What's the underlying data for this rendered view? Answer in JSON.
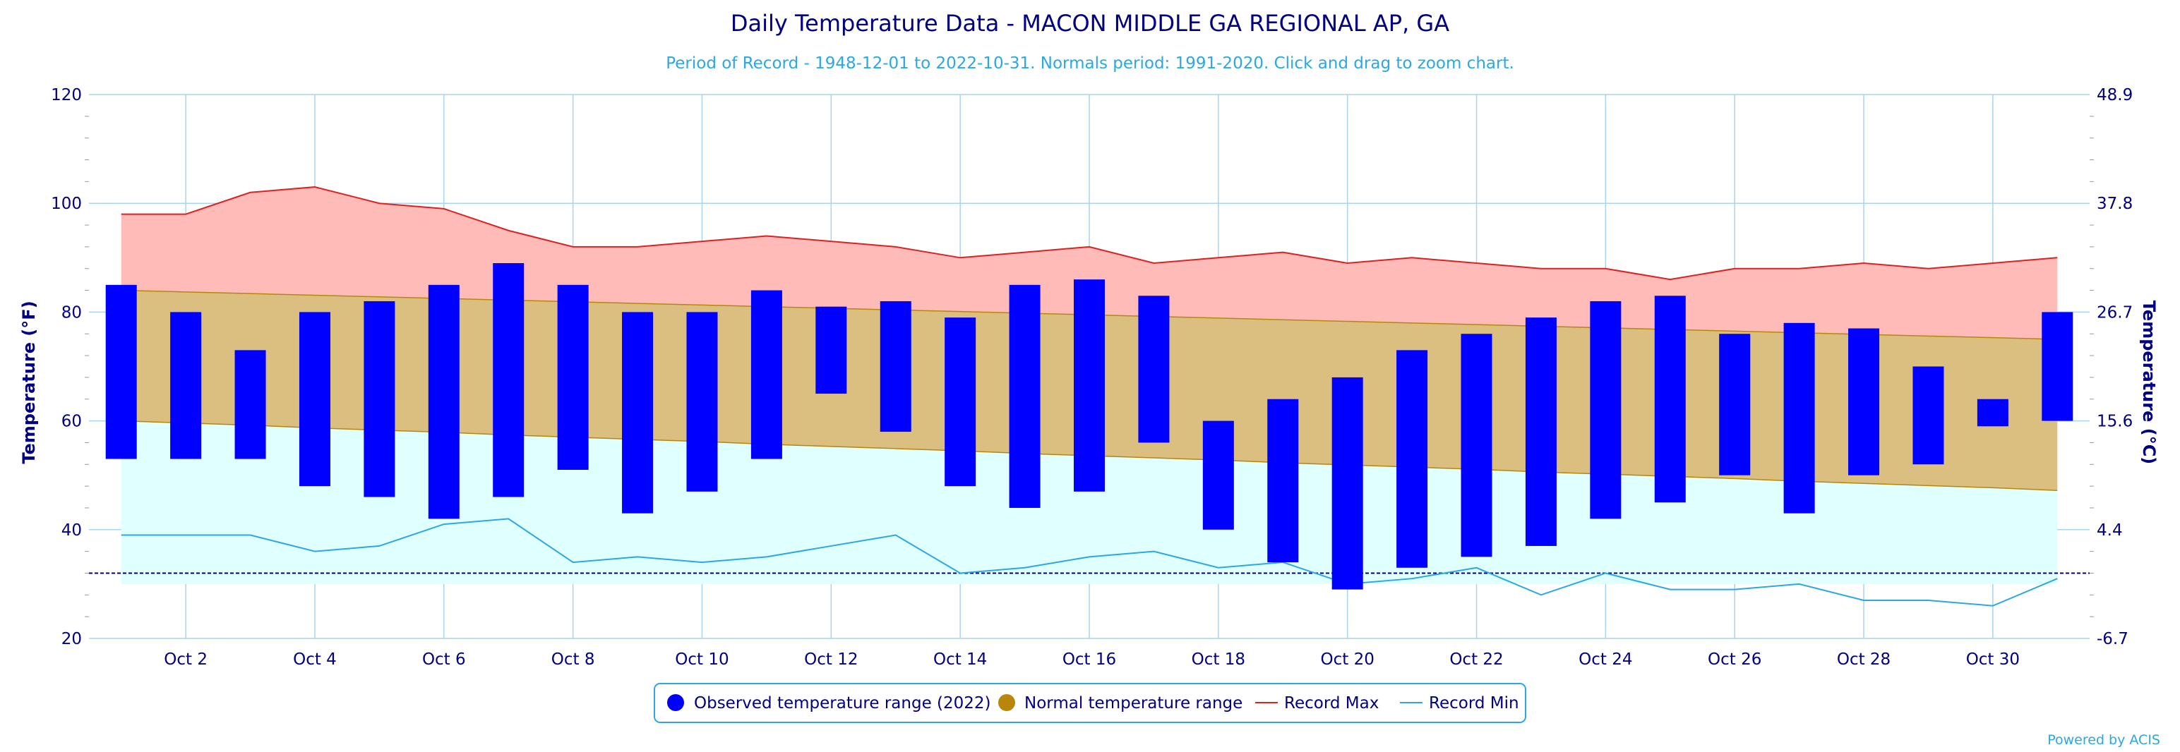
{
  "chart_data": {
    "type": "bar",
    "title": "Daily Temperature Data - MACON MIDDLE GA REGIONAL AP, GA",
    "subtitle": "Period of Record - 1948-12-01 to 2022-10-31. Normals period: 1991-2020. Click and drag to zoom chart.",
    "ylabel": "Temperature (°F)",
    "ylabel_right": "Temperature (°C)",
    "ylim": [
      20,
      120
    ],
    "yticks": [
      "20",
      "40",
      "60",
      "80",
      "100",
      "120"
    ],
    "yticks_right": [
      "-6.7",
      "4.4",
      "15.6",
      "26.7",
      "37.8",
      "48.9"
    ],
    "xticks": [
      "Oct 2",
      "Oct 4",
      "Oct 6",
      "Oct 8",
      "Oct 10",
      "Oct 12",
      "Oct 14",
      "Oct 16",
      "Oct 18",
      "Oct 20",
      "Oct 22",
      "Oct 24",
      "Oct 26",
      "Oct 28",
      "Oct 30"
    ],
    "xtick_days": [
      2,
      4,
      6,
      8,
      10,
      12,
      14,
      16,
      18,
      20,
      22,
      24,
      26,
      28,
      30
    ],
    "days": [
      1,
      2,
      3,
      4,
      5,
      6,
      7,
      8,
      9,
      10,
      11,
      12,
      13,
      14,
      15,
      16,
      17,
      18,
      19,
      20,
      21,
      22,
      23,
      24,
      25,
      26,
      27,
      28,
      29,
      30,
      31
    ],
    "series": [
      {
        "name": "Observed temperature range (2022)",
        "color": "#0000ff",
        "low": [
          53,
          53,
          53,
          48,
          46,
          42,
          46,
          51,
          43,
          47,
          53,
          65,
          58,
          48,
          44,
          47,
          56,
          40,
          34,
          29,
          33,
          35,
          37,
          42,
          45,
          50,
          43,
          50,
          52,
          59,
          60
        ],
        "high": [
          85,
          80,
          73,
          80,
          82,
          85,
          89,
          85,
          80,
          80,
          84,
          81,
          82,
          79,
          85,
          86,
          83,
          60,
          64,
          68,
          73,
          76,
          79,
          82,
          83,
          76,
          78,
          77,
          70,
          64,
          80
        ]
      },
      {
        "name": "Normal temperature range",
        "color": "#b8860b",
        "low": [
          60,
          59.6,
          59.2,
          58.7,
          58.3,
          57.9,
          57.4,
          57,
          56.6,
          56.2,
          55.7,
          55.3,
          54.9,
          54.5,
          54,
          53.6,
          53.2,
          52.8,
          52.3,
          51.9,
          51.5,
          51.1,
          50.6,
          50.2,
          49.8,
          49.4,
          48.9,
          48.5,
          48.1,
          47.7,
          47.2
        ],
        "high": [
          84,
          83.7,
          83.4,
          83.1,
          82.8,
          82.5,
          82.2,
          81.9,
          81.6,
          81.3,
          81,
          80.7,
          80.4,
          80.1,
          79.8,
          79.5,
          79.2,
          78.9,
          78.6,
          78.3,
          78,
          77.7,
          77.4,
          77.1,
          76.8,
          76.5,
          76.2,
          75.9,
          75.6,
          75.3,
          75
        ]
      },
      {
        "name": "Record Max",
        "color": "#e02020",
        "values": [
          98,
          98,
          102,
          103,
          100,
          99,
          95,
          92,
          92,
          93,
          94,
          93,
          92,
          90,
          91,
          92,
          89,
          90,
          91,
          89,
          90,
          89,
          88,
          88,
          86,
          88,
          88,
          89,
          88,
          89,
          90
        ]
      },
      {
        "name": "Record Min",
        "color": "#2aa8e0",
        "values": [
          39,
          39,
          39,
          36,
          37,
          41,
          42,
          34,
          35,
          34,
          35,
          37,
          39,
          32,
          33,
          35,
          36,
          33,
          34,
          30,
          31,
          33,
          28,
          32,
          29,
          29,
          30,
          27,
          27,
          26,
          31
        ]
      }
    ],
    "reference_line": 32,
    "colors": {
      "record_band": "#ffbbb8",
      "normal_band": "#dbbf80",
      "below_band": "#e0ffff",
      "grid": "#a8d4f0",
      "axis_text": "#000080",
      "reference_line": "#000080"
    },
    "grid": true,
    "legend_position": "bottom-center"
  },
  "credit": "Powered by ACIS"
}
